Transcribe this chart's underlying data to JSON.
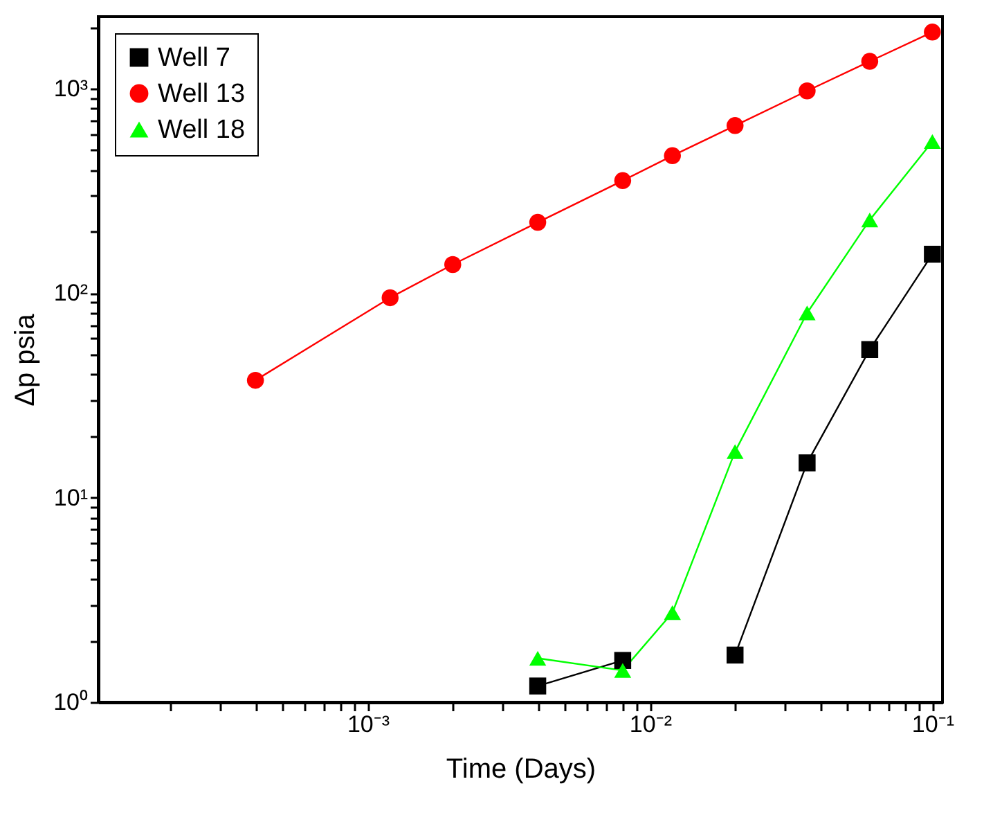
{
  "chart_data": {
    "type": "line",
    "xlabel": "Time (Days)",
    "ylabel": "Δp psia",
    "log": "xy",
    "legend": "top left",
    "xlim": [
      0.000111,
      0.1086
    ],
    "ylim": [
      1,
      2250
    ],
    "xticks": [
      {
        "value": 0.0002,
        "label": null
      },
      {
        "value": 0.0003,
        "label": null
      },
      {
        "value": 0.0004,
        "label": null
      },
      {
        "value": 0.0005,
        "label": null
      },
      {
        "value": 0.0006,
        "label": null
      },
      {
        "value": 0.0007,
        "label": null
      },
      {
        "value": 0.0008,
        "label": null
      },
      {
        "value": 0.0009,
        "label": null
      },
      {
        "value": 0.001,
        "label": "10⁻³"
      },
      {
        "value": 0.002,
        "label": null
      },
      {
        "value": 0.003,
        "label": null
      },
      {
        "value": 0.004,
        "label": null
      },
      {
        "value": 0.005,
        "label": null
      },
      {
        "value": 0.006,
        "label": null
      },
      {
        "value": 0.007,
        "label": null
      },
      {
        "value": 0.008,
        "label": null
      },
      {
        "value": 0.009,
        "label": null
      },
      {
        "value": 0.01,
        "label": "10⁻²"
      },
      {
        "value": 0.02,
        "label": null
      },
      {
        "value": 0.03,
        "label": null
      },
      {
        "value": 0.04,
        "label": null
      },
      {
        "value": 0.05,
        "label": null
      },
      {
        "value": 0.06,
        "label": null
      },
      {
        "value": 0.07,
        "label": null
      },
      {
        "value": 0.08,
        "label": null
      },
      {
        "value": 0.09,
        "label": null
      },
      {
        "value": 0.1,
        "label": "10⁻¹"
      }
    ],
    "yticks": [
      {
        "value": 1,
        "label": "10⁰"
      },
      {
        "value": 2,
        "label": null
      },
      {
        "value": 3,
        "label": null
      },
      {
        "value": 4,
        "label": null
      },
      {
        "value": 5,
        "label": null
      },
      {
        "value": 6,
        "label": null
      },
      {
        "value": 7,
        "label": null
      },
      {
        "value": 8,
        "label": null
      },
      {
        "value": 9,
        "label": null
      },
      {
        "value": 10,
        "label": "10¹"
      },
      {
        "value": 20,
        "label": null
      },
      {
        "value": 30,
        "label": null
      },
      {
        "value": 40,
        "label": null
      },
      {
        "value": 50,
        "label": null
      },
      {
        "value": 60,
        "label": null
      },
      {
        "value": 70,
        "label": null
      },
      {
        "value": 80,
        "label": null
      },
      {
        "value": 90,
        "label": null
      },
      {
        "value": 100,
        "label": "10²"
      },
      {
        "value": 200,
        "label": null
      },
      {
        "value": 300,
        "label": null
      },
      {
        "value": 400,
        "label": null
      },
      {
        "value": 500,
        "label": null
      },
      {
        "value": 600,
        "label": null
      },
      {
        "value": 700,
        "label": null
      },
      {
        "value": 800,
        "label": null
      },
      {
        "value": 900,
        "label": null
      },
      {
        "value": 1000,
        "label": "10³"
      },
      {
        "value": 2000,
        "label": null
      }
    ],
    "series": [
      {
        "name": "Well 7",
        "color": "#000000",
        "marker": "square",
        "x": [
          0.004,
          0.008,
          0.012,
          0.02,
          0.036,
          0.06,
          0.1
        ],
        "values": [
          1.2,
          1.6,
          null,
          1.7,
          14.8,
          53,
          155
        ]
      },
      {
        "name": "Well 13",
        "color": "#ff0000",
        "marker": "circle",
        "x": [
          0.0004,
          0.0012,
          0.002,
          0.004,
          0.008,
          0.012,
          0.02,
          0.036,
          0.06,
          0.1
        ],
        "values": [
          37.5,
          95,
          138,
          222,
          355,
          470,
          660,
          975,
          1360,
          1890
        ]
      },
      {
        "name": "Well 18",
        "color": "#00ff00",
        "marker": "triangle",
        "x": [
          0.004,
          0.008,
          0.012,
          0.02,
          0.036,
          0.06,
          0.1
        ],
        "values": [
          1.64,
          1.43,
          2.74,
          16.8,
          80,
          228,
          551
        ]
      }
    ]
  }
}
